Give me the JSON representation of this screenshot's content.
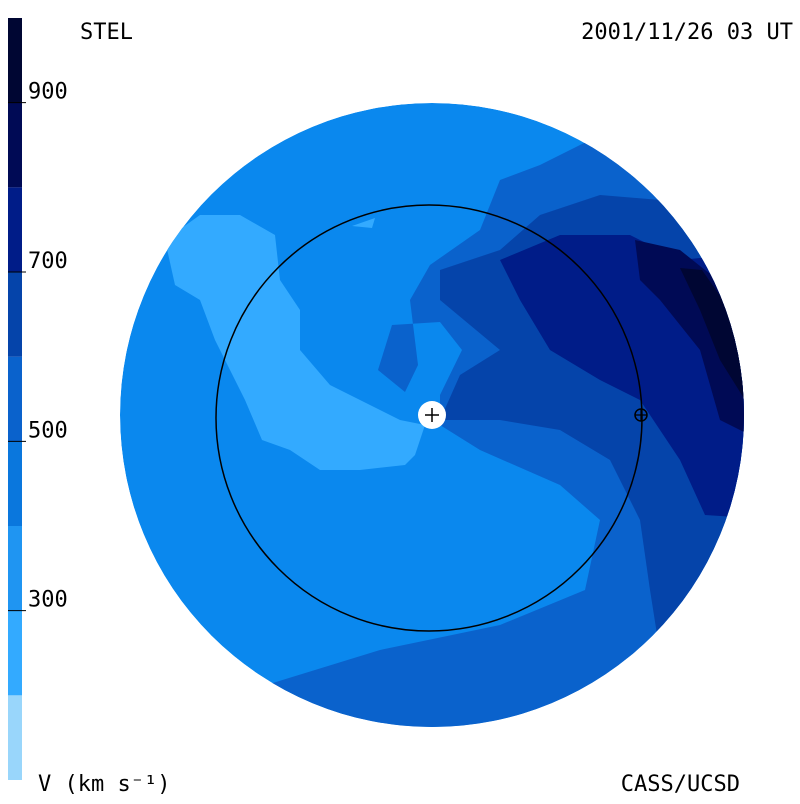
{
  "header": {
    "left": "STEL",
    "right": "2001/11/26 03 UT"
  },
  "footer": {
    "left": "V (km s⁻¹)",
    "right": "CASS/UCSD"
  },
  "colorbar": {
    "lim": [
      100,
      1000
    ],
    "ticks": [
      300,
      500,
      700,
      900
    ],
    "bins": [
      100,
      200,
      300,
      400,
      500,
      600,
      700,
      800,
      900,
      1000
    ],
    "colors": [
      "#99d6fb",
      "#33aaff",
      "#1f95f2",
      "#0a77dd",
      "#0a62cc",
      "#0544aa",
      "#001c88",
      "#000a55",
      "#000633"
    ]
  }
}
